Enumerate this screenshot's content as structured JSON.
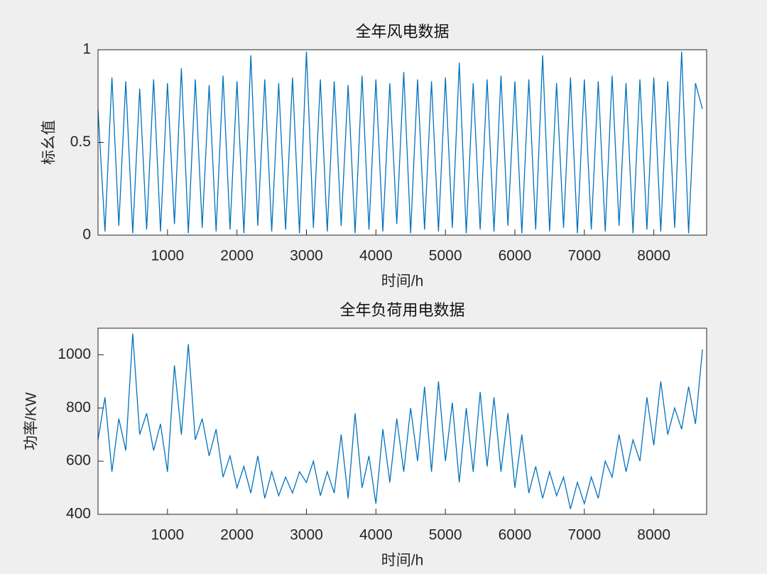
{
  "chart_data": [
    {
      "type": "line",
      "title": "全年风电数据",
      "x_label": "时间/h",
      "y_label": "标幺值",
      "xlim": [
        0,
        8760
      ],
      "xticks": [
        1000,
        2000,
        3000,
        4000,
        5000,
        6000,
        7000,
        8000
      ],
      "ylim": [
        0,
        1
      ],
      "yticks": [
        0,
        0.5,
        1
      ],
      "series": [
        {
          "color": "#0072bd",
          "x": [
            0,
            100,
            200,
            300,
            400,
            500,
            600,
            700,
            800,
            900,
            1000,
            1100,
            1200,
            1300,
            1400,
            1500,
            1600,
            1700,
            1800,
            1900,
            2000,
            2100,
            2200,
            2300,
            2400,
            2500,
            2600,
            2700,
            2800,
            2900,
            3000,
            3100,
            3200,
            3300,
            3400,
            3500,
            3600,
            3700,
            3800,
            3900,
            4000,
            4100,
            4200,
            4300,
            4400,
            4500,
            4600,
            4700,
            4800,
            4900,
            5000,
            5100,
            5200,
            5300,
            5400,
            5500,
            5600,
            5700,
            5800,
            5900,
            6000,
            6100,
            6200,
            6300,
            6400,
            6500,
            6600,
            6700,
            6800,
            6900,
            7000,
            7100,
            7200,
            7300,
            7400,
            7500,
            7600,
            7700,
            7800,
            7900,
            8000,
            8100,
            8200,
            8300,
            8400,
            8500,
            8600,
            8700
          ],
          "values": [
            0.68,
            0.02,
            0.85,
            0.05,
            0.83,
            0.01,
            0.79,
            0.03,
            0.84,
            0.02,
            0.82,
            0.06,
            0.9,
            0.01,
            0.84,
            0.04,
            0.81,
            0.02,
            0.86,
            0.03,
            0.83,
            0.01,
            0.97,
            0.05,
            0.84,
            0.02,
            0.82,
            0.03,
            0.85,
            0.01,
            0.99,
            0.04,
            0.84,
            0.02,
            0.83,
            0.05,
            0.81,
            0.01,
            0.86,
            0.03,
            0.84,
            0.02,
            0.82,
            0.06,
            0.88,
            0.01,
            0.84,
            0.03,
            0.83,
            0.02,
            0.85,
            0.04,
            0.93,
            0.01,
            0.82,
            0.03,
            0.84,
            0.02,
            0.86,
            0.05,
            0.83,
            0.01,
            0.84,
            0.03,
            0.97,
            0.02,
            0.82,
            0.04,
            0.85,
            0.01,
            0.84,
            0.03,
            0.83,
            0.02,
            0.86,
            0.05,
            0.82,
            0.01,
            0.84,
            0.03,
            0.85,
            0.02,
            0.83,
            0.04,
            0.99,
            0.01,
            0.82,
            0.68
          ]
        }
      ]
    },
    {
      "type": "line",
      "title": "全年负荷用电数据",
      "x_label": "时间/h",
      "y_label": "功率/KW",
      "xlim": [
        0,
        8760
      ],
      "xticks": [
        1000,
        2000,
        3000,
        4000,
        5000,
        6000,
        7000,
        8000
      ],
      "ylim": [
        400,
        1100
      ],
      "yticks": [
        400,
        600,
        800,
        1000
      ],
      "series": [
        {
          "color": "#0072bd",
          "x": [
            0,
            100,
            200,
            300,
            400,
            500,
            600,
            700,
            800,
            900,
            1000,
            1100,
            1200,
            1300,
            1400,
            1500,
            1600,
            1700,
            1800,
            1900,
            2000,
            2100,
            2200,
            2300,
            2400,
            2500,
            2600,
            2700,
            2800,
            2900,
            3000,
            3100,
            3200,
            3300,
            3400,
            3500,
            3600,
            3700,
            3800,
            3900,
            4000,
            4100,
            4200,
            4300,
            4400,
            4500,
            4600,
            4700,
            4800,
            4900,
            5000,
            5100,
            5200,
            5300,
            5400,
            5500,
            5600,
            5700,
            5800,
            5900,
            6000,
            6100,
            6200,
            6300,
            6400,
            6500,
            6600,
            6700,
            6800,
            6900,
            7000,
            7100,
            7200,
            7300,
            7400,
            7500,
            7600,
            7700,
            7800,
            7900,
            8000,
            8100,
            8200,
            8300,
            8400,
            8500,
            8600,
            8700
          ],
          "values": [
            680,
            840,
            560,
            760,
            640,
            1080,
            700,
            780,
            640,
            740,
            560,
            960,
            700,
            1040,
            680,
            760,
            620,
            720,
            540,
            620,
            500,
            580,
            480,
            620,
            460,
            560,
            470,
            540,
            480,
            560,
            520,
            600,
            470,
            560,
            480,
            700,
            460,
            780,
            500,
            620,
            440,
            720,
            520,
            760,
            560,
            800,
            600,
            880,
            560,
            900,
            600,
            820,
            520,
            800,
            560,
            860,
            580,
            840,
            560,
            780,
            500,
            700,
            480,
            580,
            460,
            560,
            470,
            540,
            420,
            520,
            440,
            540,
            460,
            600,
            540,
            700,
            560,
            680,
            600,
            840,
            660,
            900,
            700,
            800,
            720,
            880,
            740,
            1020
          ]
        }
      ]
    }
  ]
}
